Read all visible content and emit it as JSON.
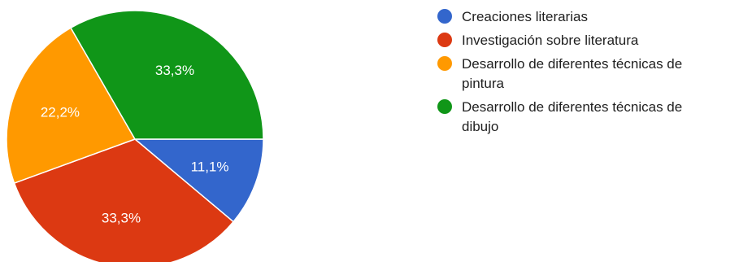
{
  "chart_data": {
    "type": "pie",
    "legend_position": "right",
    "slices": [
      {
        "label": "Creaciones literarias",
        "value": 11.1,
        "display": "11,1%",
        "color": "#3366cc"
      },
      {
        "label": "Investigación sobre literatura",
        "value": 33.3,
        "display": "33,3%",
        "color": "#dc3912"
      },
      {
        "label": "Desarrollo de diferentes técnicas de\npintura",
        "value": 22.2,
        "display": "22,2%",
        "color": "#ff9900"
      },
      {
        "label": "Desarrollo de diferentes técnicas de\ndibujo",
        "value": 33.3,
        "display": "33,3%",
        "color": "#109618"
      }
    ]
  }
}
